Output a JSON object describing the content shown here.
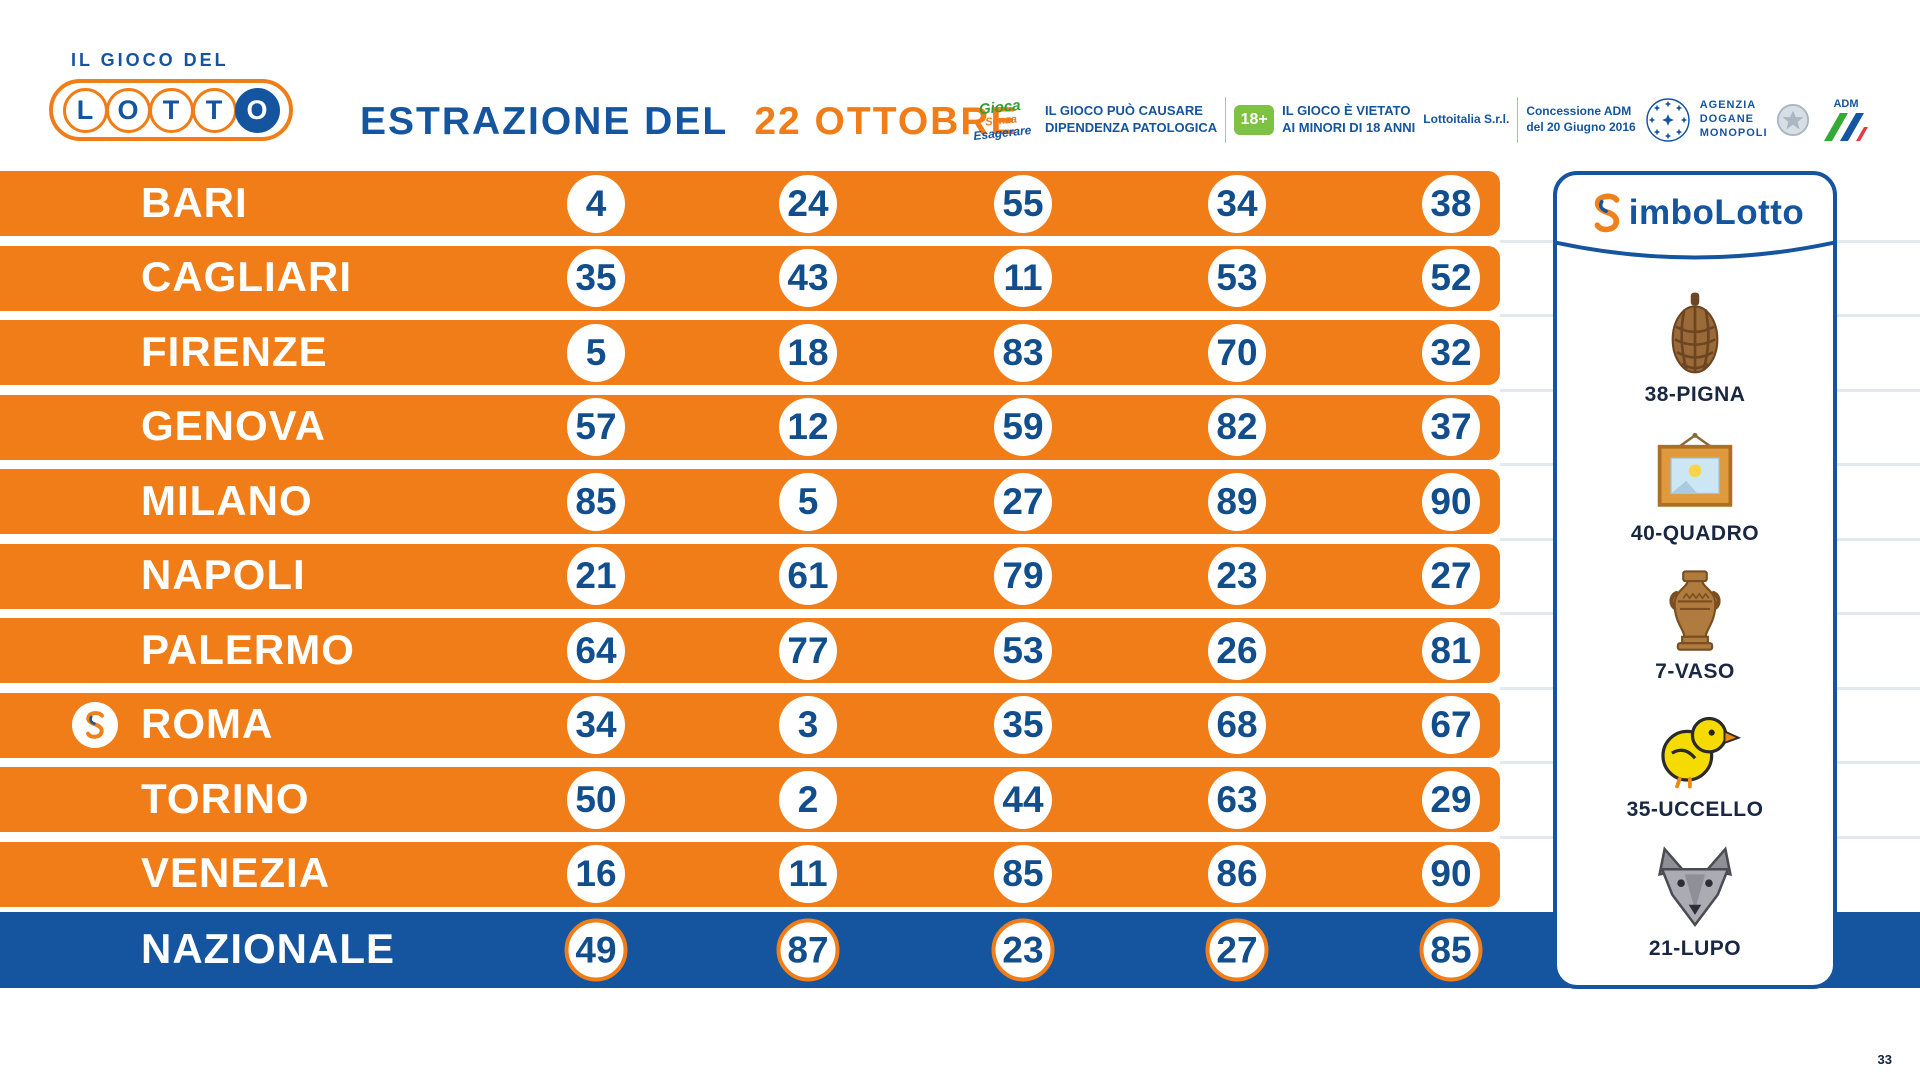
{
  "header": {
    "brand_top": "IL GIOCO DEL",
    "brand_letters": [
      "L",
      "O",
      "T",
      "T",
      "O"
    ],
    "title": "ESTRAZIONE DEL",
    "date": "22 OTTOBRE",
    "responsible_gaming": {
      "line1": "Gioca",
      "line2": "Senza",
      "line3": "Esagerare"
    },
    "warning_addiction": "IL GIOCO PUÒ CAUSARE\nDIPENDENZA PATOLOGICA",
    "age_badge": "18+",
    "warning_minors": "IL GIOCO È VIETATO\nAI MINORI DI 18 ANNI",
    "company": "Lottoitalia S.r.l.",
    "concession": "Concessione ADM\ndel 20 Giugno 2016",
    "agency": "AGENZIA\nDOGANE\nMONOPOLI",
    "adm_label": "ADM"
  },
  "colors": {
    "orange": "#F07D17",
    "blue": "#15549E",
    "number_blue": "#124E8C",
    "badge_green": "#7DC242"
  },
  "rows": [
    {
      "city": "BARI",
      "numbers": [
        "4",
        "24",
        "55",
        "34",
        "38"
      ]
    },
    {
      "city": "CAGLIARI",
      "numbers": [
        "35",
        "43",
        "11",
        "53",
        "52"
      ]
    },
    {
      "city": "FIRENZE",
      "numbers": [
        "5",
        "18",
        "83",
        "70",
        "32"
      ]
    },
    {
      "city": "GENOVA",
      "numbers": [
        "57",
        "12",
        "59",
        "82",
        "37"
      ]
    },
    {
      "city": "MILANO",
      "numbers": [
        "85",
        "5",
        "27",
        "89",
        "90"
      ]
    },
    {
      "city": "NAPOLI",
      "numbers": [
        "21",
        "61",
        "79",
        "23",
        "27"
      ]
    },
    {
      "city": "PALERMO",
      "numbers": [
        "64",
        "77",
        "53",
        "26",
        "81"
      ]
    },
    {
      "city": "ROMA",
      "numbers": [
        "34",
        "3",
        "35",
        "68",
        "67"
      ],
      "simbolotto": true
    },
    {
      "city": "TORINO",
      "numbers": [
        "50",
        "2",
        "44",
        "63",
        "29"
      ]
    },
    {
      "city": "VENEZIA",
      "numbers": [
        "16",
        "11",
        "85",
        "86",
        "90"
      ]
    },
    {
      "city": "NAZIONALE",
      "numbers": [
        "49",
        "87",
        "23",
        "27",
        "85"
      ],
      "national": true
    }
  ],
  "panel": {
    "title_rest": "imboLotto",
    "symbols": [
      {
        "icon": "pigna",
        "label": "38-PIGNA"
      },
      {
        "icon": "quadro",
        "label": "40-QUADRO"
      },
      {
        "icon": "vaso",
        "label": "7-VASO"
      },
      {
        "icon": "uccello",
        "label": "35-UCCELLO"
      },
      {
        "icon": "lupo",
        "label": "21-LUPO"
      }
    ]
  },
  "footer": {
    "page_marker": "33"
  }
}
